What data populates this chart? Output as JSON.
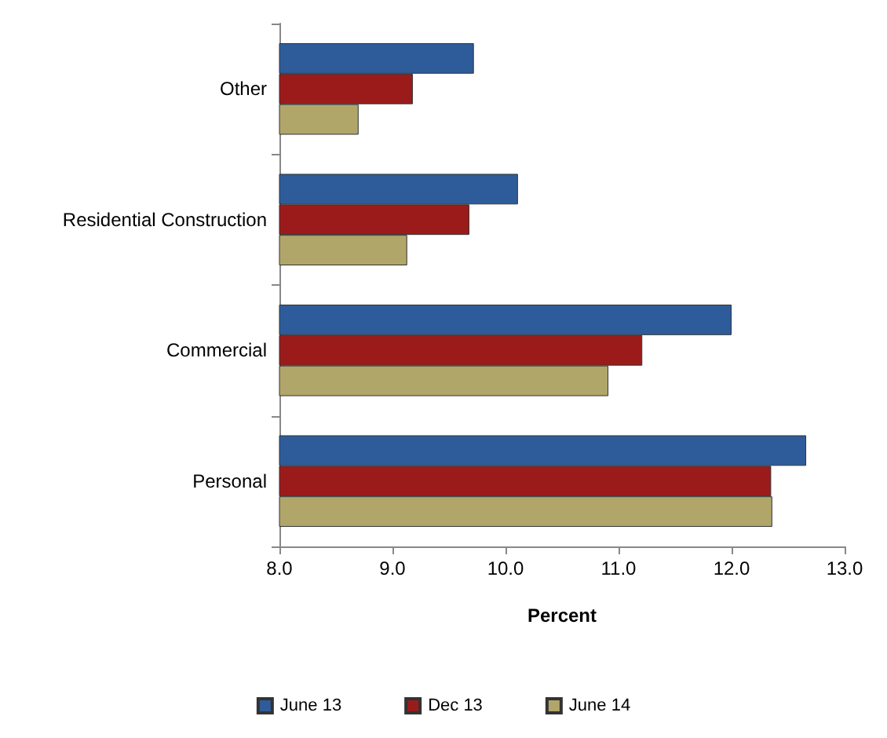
{
  "chart_data": {
    "type": "bar",
    "orientation": "horizontal",
    "categories": [
      "Other",
      "Residential Construction",
      "Commercial",
      "Personal"
    ],
    "series": [
      {
        "name": "June 13",
        "color": "#2e5c9a",
        "values": [
          9.72,
          10.11,
          12.0,
          12.66
        ]
      },
      {
        "name": "Dec 13",
        "color": "#9b1b1b",
        "values": [
          9.18,
          9.68,
          11.21,
          12.35
        ]
      },
      {
        "name": "June 14",
        "color": "#b0a66a",
        "values": [
          8.7,
          9.13,
          10.91,
          12.36
        ]
      }
    ],
    "xlabel": "Percent",
    "xlim": [
      8,
      13
    ],
    "xticks": [
      {
        "value": 8,
        "label": "8.0"
      },
      {
        "value": 9,
        "label": "9.0"
      },
      {
        "value": 10,
        "label": "10.0"
      },
      {
        "value": 11,
        "label": "11.0"
      },
      {
        "value": 12,
        "label": "12.0"
      },
      {
        "value": 13,
        "label": "13.0"
      }
    ],
    "grid": false,
    "legend": "bottom"
  }
}
